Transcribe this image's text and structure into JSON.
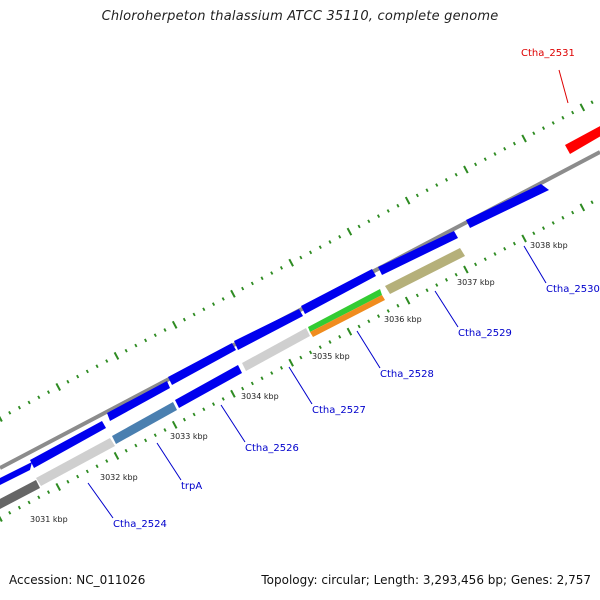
{
  "title": "Chloroherpeton thalassium ATCC 35110, complete genome",
  "footer": {
    "accession": "Accession: NC_011026",
    "topology": "Topology: circular; Length: 3,293,456 bp; Genes: 2,757"
  },
  "colors": {
    "backbone": "#8c8c8c",
    "tick": "#2e8b22",
    "label_default": "#0000cc",
    "label_highlight": "#dd0000",
    "gene_default": "#0000ee"
  },
  "scale_labels": [
    "3031 kbp",
    "3032 kbp",
    "3033 kbp",
    "3034 kbp",
    "3035 kbp",
    "3036 kbp",
    "3037 kbp",
    "3038 kbp"
  ],
  "gene_labels": [
    {
      "text": "Ctha_2524",
      "color": "#0000cc"
    },
    {
      "text": "trpA",
      "color": "#0000cc"
    },
    {
      "text": "Ctha_2526",
      "color": "#0000cc"
    },
    {
      "text": "Ctha_2527",
      "color": "#0000cc"
    },
    {
      "text": "Ctha_2528",
      "color": "#0000cc"
    },
    {
      "text": "Ctha_2529",
      "color": "#0000cc"
    },
    {
      "text": "Ctha_2530",
      "color": "#0000cc"
    },
    {
      "text": "Ctha_2531",
      "color": "#dd0000"
    }
  ]
}
